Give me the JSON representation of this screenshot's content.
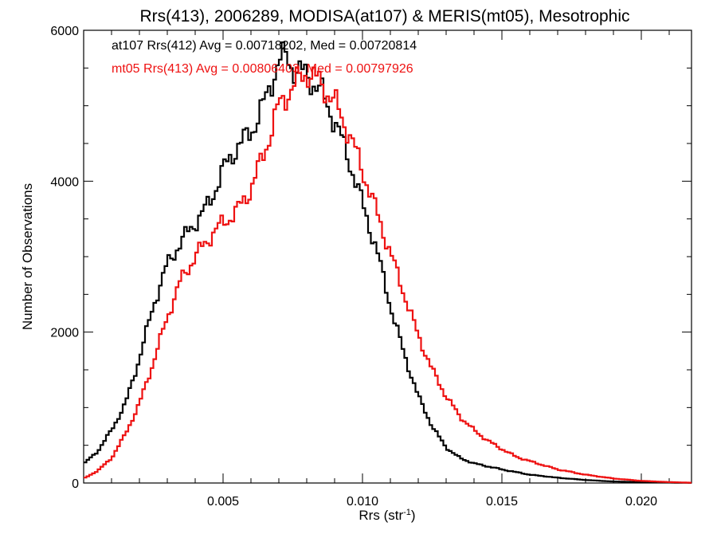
{
  "chart_data": {
    "type": "line",
    "title": "Rrs(413), 2006289, MODISA(at107) & MERIS(mt05), Mesotrophic",
    "xlabel": "Rrs (str",
    "xlabel_sup": "-1",
    "xlabel_close": ")",
    "ylabel": "Number of Observations",
    "xlim": [
      0.0,
      0.0218
    ],
    "ylim": [
      0,
      6000
    ],
    "x_ticks": [
      0.005,
      0.01,
      0.015,
      0.02
    ],
    "x_tick_labels": [
      "0.005",
      "0.010",
      "0.015",
      "0.020"
    ],
    "y_ticks": [
      0,
      2000,
      4000,
      6000
    ],
    "y_tick_labels": [
      "0",
      "2000",
      "4000",
      "6000"
    ],
    "grid": false,
    "legend_position": "top-left",
    "series": [
      {
        "label": "at107 Rrs(412) Avg = 0.00718202, Med = 0.00720814",
        "color": "#000000",
        "x": [
          0.0,
          0.0005,
          0.001,
          0.0015,
          0.002,
          0.0025,
          0.003,
          0.0035,
          0.004,
          0.0045,
          0.005,
          0.0055,
          0.006,
          0.0065,
          0.007,
          0.0073,
          0.0075,
          0.008,
          0.0085,
          0.009,
          0.0095,
          0.01,
          0.0105,
          0.011,
          0.0115,
          0.012,
          0.0125,
          0.013,
          0.0135,
          0.014,
          0.0145,
          0.015,
          0.016,
          0.017,
          0.018,
          0.019,
          0.02,
          0.021,
          0.0218
        ],
        "values": [
          250,
          420,
          700,
          1050,
          1650,
          2350,
          2900,
          3200,
          3450,
          3700,
          4150,
          4450,
          4650,
          5050,
          5600,
          5650,
          5500,
          5400,
          5200,
          4800,
          4300,
          3700,
          3100,
          2350,
          1700,
          1150,
          750,
          470,
          330,
          260,
          220,
          180,
          110,
          70,
          40,
          20,
          12,
          6,
          2
        ]
      },
      {
        "label": "mt05 Rrs(413) Avg = 0.00806403, Med = 0.00797926",
        "color": "#ee1111",
        "x": [
          0.0,
          0.0005,
          0.001,
          0.0015,
          0.002,
          0.0025,
          0.003,
          0.0035,
          0.004,
          0.0045,
          0.005,
          0.0055,
          0.006,
          0.0065,
          0.007,
          0.0075,
          0.008,
          0.0085,
          0.009,
          0.0095,
          0.01,
          0.0105,
          0.011,
          0.0115,
          0.012,
          0.0125,
          0.013,
          0.0135,
          0.014,
          0.0145,
          0.015,
          0.0155,
          0.016,
          0.017,
          0.018,
          0.019,
          0.02,
          0.021,
          0.0218
        ],
        "values": [
          60,
          160,
          330,
          650,
          1050,
          1600,
          2200,
          2700,
          3000,
          3250,
          3450,
          3600,
          3900,
          4400,
          5000,
          5250,
          5450,
          5300,
          5050,
          4650,
          4150,
          3600,
          3050,
          2500,
          1950,
          1500,
          1150,
          880,
          700,
          560,
          450,
          350,
          290,
          180,
          110,
          60,
          28,
          12,
          4
        ]
      }
    ]
  }
}
